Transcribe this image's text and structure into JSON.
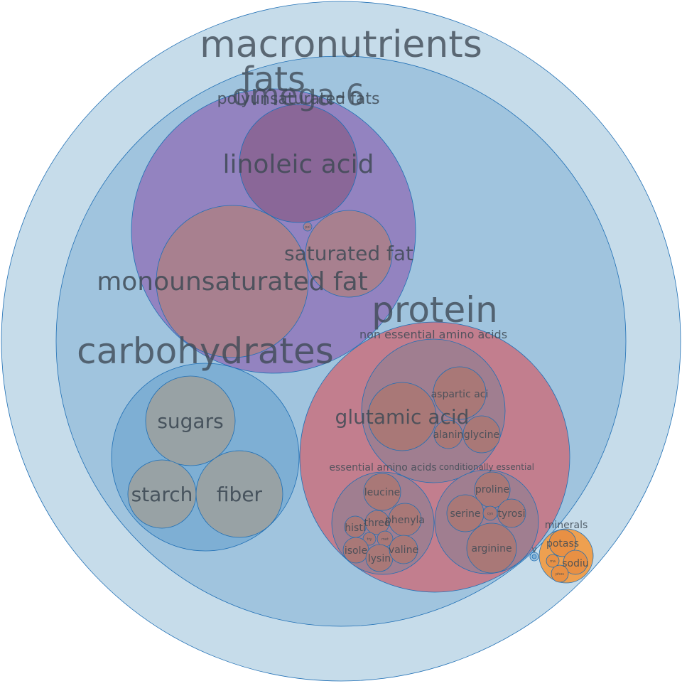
{
  "colors": {
    "outer": "#c6dcea",
    "macro": "#a0c4de",
    "fats": "#9383c0",
    "polyunsaturated": "#8a6798",
    "fat_item": "#a8808f",
    "carb": "#7eafd4",
    "carb_item": "#98a2a5",
    "protein": "#c27e8e",
    "amino_group": "#a07e90",
    "amino_item": "#a97877",
    "minerals": "#eea050",
    "mineral_item": "#e89044",
    "label": "#3e4a55"
  },
  "nodes": {
    "root": {
      "name": "macronutrients"
    },
    "fats": {
      "name": "fats"
    },
    "omega6": {
      "name": "omega-6"
    },
    "polyunsaturated": {
      "name": "polyunsaturated fats"
    },
    "linoleic": {
      "name": "linoleic acid"
    },
    "monounsaturated": {
      "name": "monounsaturated fat"
    },
    "saturated": {
      "name": "saturated fat"
    },
    "fat_tiny": {
      "name": "pol"
    },
    "carbohydrates": {
      "name": "carbohydrates"
    },
    "sugars": {
      "name": "sugars"
    },
    "starch": {
      "name": "starch"
    },
    "fiber": {
      "name": "fiber"
    },
    "protein": {
      "name": "protein"
    },
    "nonessential": {
      "name": "non essential amino acids"
    },
    "glutamic": {
      "name": "glutamic acid"
    },
    "aspartic": {
      "name": "aspartic aci"
    },
    "alanine": {
      "name": "alanin"
    },
    "glycine": {
      "name": "glycine"
    },
    "essential": {
      "name": "essential amino acids"
    },
    "leucine": {
      "name": "leucine"
    },
    "histidine": {
      "name": "histi"
    },
    "threonine": {
      "name": "threo"
    },
    "phenylalanine": {
      "name": "phenyla"
    },
    "tryptophan": {
      "name": "try"
    },
    "methionine": {
      "name": "met"
    },
    "isoleucine": {
      "name": "isole"
    },
    "lysine": {
      "name": "lysin"
    },
    "valine": {
      "name": "valine"
    },
    "conditional": {
      "name": "conditionally essential"
    },
    "proline": {
      "name": "proline"
    },
    "serine": {
      "name": "serine"
    },
    "cysteine": {
      "name": "cys"
    },
    "tyrosine": {
      "name": "tyrosi"
    },
    "arginine": {
      "name": "arginine"
    },
    "vitamins": {
      "name": "v"
    },
    "minerals": {
      "name": "minerals"
    },
    "potassium": {
      "name": "potass"
    },
    "magnesium": {
      "name": "ma"
    },
    "sodium": {
      "name": "sodiu"
    },
    "phosphorus": {
      "name": "phos"
    }
  }
}
